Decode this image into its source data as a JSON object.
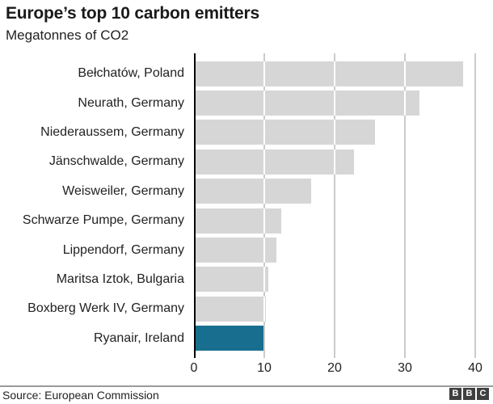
{
  "header": {
    "title": "Europe’s top 10 carbon emitters",
    "subtitle": "Megatonnes of CO2"
  },
  "chart_data": {
    "type": "bar",
    "orientation": "horizontal",
    "title": "Europe’s top 10 carbon emitters",
    "subtitle": "Megatonnes of CO2",
    "categories": [
      "Bełchatów, Poland",
      "Neurath, Germany",
      "Niederaussem, Germany",
      "Jänschwalde, Germany",
      "Weisweiler, Germany",
      "Schwarze Pumpe, Germany",
      "Lippendorf, Germany",
      "Maritsa Iztok, Bulgaria",
      "Boxberg Werk IV, Germany",
      "Ryanair, Ireland"
    ],
    "values": [
      38.3,
      32.1,
      25.8,
      22.8,
      16.7,
      12.4,
      11.7,
      10.6,
      10.2,
      9.9
    ],
    "highlight_index": 9,
    "bar_color": "#d6d6d6",
    "highlight_color": "#176e8e",
    "gridline_color": "#cbcbcb",
    "axis_color": "#000000",
    "xlabel": "",
    "ylabel": "",
    "xlim": [
      0,
      40
    ],
    "xticks": [
      0,
      10,
      20,
      30,
      40
    ],
    "grid": true,
    "legend": false
  },
  "footer": {
    "source": "Source: European Commission",
    "logo_blocks": [
      "B",
      "B",
      "C"
    ]
  }
}
